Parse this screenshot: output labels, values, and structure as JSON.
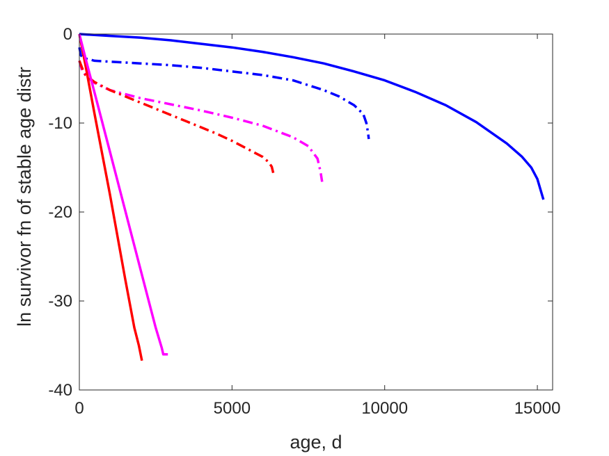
{
  "chart_data": {
    "type": "line",
    "title": "",
    "xlabel": "age, d",
    "ylabel": "ln survivor fn of stable age distr",
    "xlim": [
      0,
      15500
    ],
    "ylim": [
      -40,
      0
    ],
    "xticks": [
      0,
      5000,
      10000,
      15000
    ],
    "yticks": [
      0,
      -10,
      -20,
      -30,
      -40
    ],
    "xtick_labels": [
      "0",
      "5000",
      "10000",
      "15000"
    ],
    "ytick_labels": [
      "0",
      "-10",
      "-20",
      "-30",
      "-40"
    ],
    "grid": false,
    "box": true,
    "series": [
      {
        "color": "#0000ff",
        "style": "solid",
        "x": [
          0,
          1000,
          2000,
          3000,
          4000,
          5000,
          6000,
          7000,
          8000,
          9000,
          10000,
          11000,
          12000,
          13000,
          14000,
          14500,
          14800,
          15000,
          15200
        ],
        "y": [
          0,
          -0.2,
          -0.4,
          -0.7,
          -1.1,
          -1.5,
          -2.0,
          -2.6,
          -3.3,
          -4.2,
          -5.2,
          -6.5,
          -8.0,
          -9.9,
          -12.3,
          -13.8,
          -15.0,
          -16.3,
          -18.6
        ]
      },
      {
        "color": "#0000ff",
        "style": "dashdot",
        "x": [
          0,
          50,
          150,
          500,
          1000,
          2000,
          3000,
          4000,
          5000,
          6000,
          7000,
          8000,
          8500,
          9000,
          9300,
          9400,
          9450,
          9480
        ],
        "y": [
          -1.5,
          -2.4,
          -2.7,
          -3.0,
          -3.1,
          -3.3,
          -3.5,
          -3.8,
          -4.2,
          -4.6,
          -5.2,
          -6.3,
          -7.0,
          -8.0,
          -9.0,
          -10.0,
          -11.0,
          -11.8
        ]
      },
      {
        "color": "#ff00ff",
        "style": "dashdot",
        "x": [
          0,
          100,
          300,
          500,
          1000,
          2000,
          3000,
          4000,
          5000,
          6000,
          7000,
          7500,
          7800,
          7900,
          7950
        ],
        "y": [
          -3.0,
          -4.2,
          -5.0,
          -5.5,
          -6.3,
          -7.2,
          -7.9,
          -8.6,
          -9.4,
          -10.3,
          -11.6,
          -12.6,
          -14.0,
          -15.5,
          -16.6
        ]
      },
      {
        "color": "#ff0000",
        "style": "dashdot",
        "x": [
          0,
          100,
          200,
          500,
          1000,
          1500,
          2000,
          2500,
          3000,
          3500,
          4000,
          4500,
          5000,
          5500,
          6000,
          6200,
          6300,
          6350
        ],
        "y": [
          -3.0,
          -3.9,
          -4.6,
          -5.4,
          -6.3,
          -7.0,
          -7.7,
          -8.4,
          -9.1,
          -9.8,
          -10.5,
          -11.2,
          -12.0,
          -12.9,
          -13.8,
          -14.4,
          -14.9,
          -15.6
        ]
      },
      {
        "color": "#ff0000",
        "style": "solid",
        "x": [
          0,
          200,
          500,
          1000,
          1500,
          1800,
          1950,
          2050
        ],
        "y": [
          0,
          -3.5,
          -9.0,
          -18.0,
          -27.5,
          -33.0,
          -35.0,
          -36.7
        ]
      },
      {
        "color": "#ff00ff",
        "style": "solid",
        "x": [
          0,
          200,
          500,
          1000,
          1500,
          2000,
          2500,
          2700,
          2750,
          2900
        ],
        "y": [
          0,
          -2.7,
          -6.6,
          -13.2,
          -19.8,
          -26.4,
          -33.0,
          -35.3,
          -36.0,
          -36.0
        ]
      }
    ]
  }
}
